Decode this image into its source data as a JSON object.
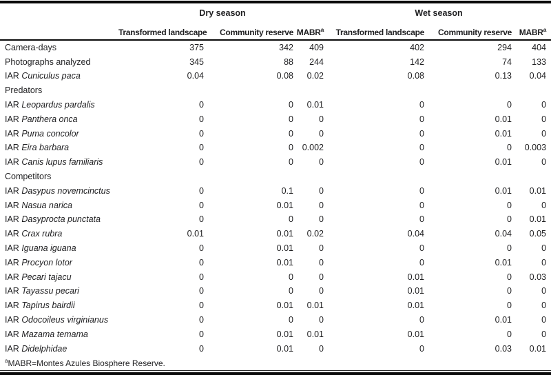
{
  "table": {
    "season_groups": [
      {
        "label": "Dry season"
      },
      {
        "label": "Wet season"
      }
    ],
    "columns": [
      {
        "label": "Transformed landscape",
        "sup": ""
      },
      {
        "label": "Community reserve",
        "sup": ""
      },
      {
        "label": "MABR",
        "sup": "a"
      },
      {
        "label": "Transformed landscape",
        "sup": ""
      },
      {
        "label": "Community reserve",
        "sup": ""
      },
      {
        "label": "MABR",
        "sup": "a"
      }
    ],
    "rows": [
      {
        "prefix": "Camera-days",
        "species": "",
        "values": [
          "375",
          "342",
          "409",
          "402",
          "294",
          "404"
        ]
      },
      {
        "prefix": "Photographs analyzed",
        "species": "",
        "values": [
          "345",
          "88",
          "244",
          "142",
          "74",
          "133"
        ]
      },
      {
        "prefix": "IAR",
        "species": "Cuniculus paca",
        "values": [
          "0.04",
          "0.08",
          "0.02",
          "0.08",
          "0.13",
          "0.04"
        ]
      },
      {
        "prefix": "Predators",
        "species": "",
        "values": [
          "",
          "",
          "",
          "",
          "",
          ""
        ]
      },
      {
        "prefix": "IAR",
        "species": "Leopardus pardalis",
        "values": [
          "0",
          "0",
          "0.01",
          "0",
          "0",
          "0"
        ]
      },
      {
        "prefix": "IAR",
        "species": "Panthera onca",
        "values": [
          "0",
          "0",
          "0",
          "0",
          "0.01",
          "0"
        ]
      },
      {
        "prefix": "IAR",
        "species": "Puma concolor",
        "values": [
          "0",
          "0",
          "0",
          "0",
          "0.01",
          "0"
        ]
      },
      {
        "prefix": "IAR",
        "species": "Eira barbara",
        "values": [
          "0",
          "0",
          "0.002",
          "0",
          "0",
          "0.003"
        ]
      },
      {
        "prefix": "IAR",
        "species": "Canis lupus familiaris",
        "values": [
          "0",
          "0",
          "0",
          "0",
          "0.01",
          "0"
        ]
      },
      {
        "prefix": "Competitors",
        "species": "",
        "values": [
          "",
          "",
          "",
          "",
          "",
          ""
        ]
      },
      {
        "prefix": "IAR",
        "species": "Dasypus novemcinctus",
        "values": [
          "0",
          "0.1",
          "0",
          "0",
          "0.01",
          "0.01"
        ]
      },
      {
        "prefix": "IAR",
        "species": "Nasua narica",
        "values": [
          "0",
          "0.01",
          "0",
          "0",
          "0",
          "0"
        ]
      },
      {
        "prefix": "IAR",
        "species": "Dasyprocta punctata",
        "values": [
          "0",
          "0",
          "0",
          "0",
          "0",
          "0.01"
        ]
      },
      {
        "prefix": "IAR",
        "species": "Crax rubra",
        "values": [
          "0.01",
          "0.01",
          "0.02",
          "0.04",
          "0.04",
          "0.05"
        ]
      },
      {
        "prefix": "IAR",
        "species": "Iguana iguana",
        "values": [
          "0",
          "0.01",
          "0",
          "0",
          "0",
          "0"
        ]
      },
      {
        "prefix": "IAR",
        "species": "Procyon lotor",
        "values": [
          "0",
          "0.01",
          "0",
          "0",
          "0.01",
          "0"
        ]
      },
      {
        "prefix": "IAR",
        "species": "Pecari tajacu",
        "values": [
          "0",
          "0",
          "0",
          "0.01",
          "0",
          "0.03"
        ]
      },
      {
        "prefix": "IAR",
        "species": "Tayassu pecari",
        "values": [
          "0",
          "0",
          "0",
          "0.01",
          "0",
          "0"
        ]
      },
      {
        "prefix": "IAR",
        "species": "Tapirus bairdii",
        "values": [
          "0",
          "0.01",
          "0.01",
          "0.01",
          "0",
          "0"
        ]
      },
      {
        "prefix": "IAR",
        "species": "Odocoileus virginianus",
        "values": [
          "0",
          "0",
          "0",
          "0",
          "0.01",
          "0"
        ]
      },
      {
        "prefix": "IAR",
        "species": "Mazama temama",
        "values": [
          "0",
          "0.01",
          "0.01",
          "0.01",
          "0",
          "0"
        ]
      },
      {
        "prefix": "IAR",
        "species": "Didelphidae",
        "values": [
          "0",
          "0.01",
          "0",
          "0",
          "0.03",
          "0.01"
        ]
      }
    ],
    "footnote": {
      "superscript": "a",
      "text": "MABR=Montes Azules Biosphere Reserve."
    }
  }
}
